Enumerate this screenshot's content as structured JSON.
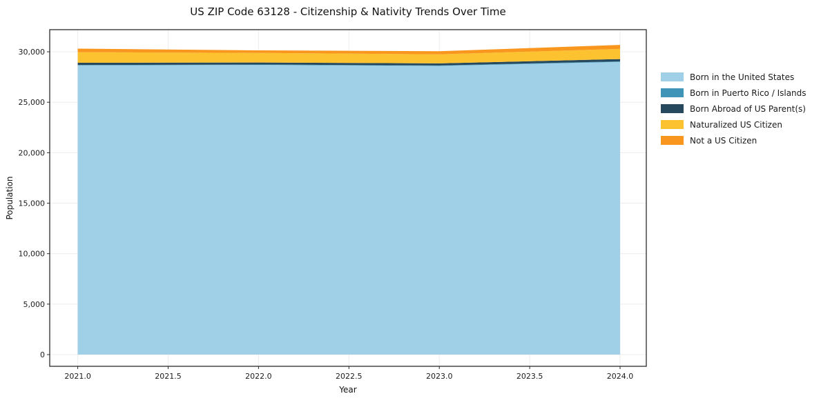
{
  "chart_data": {
    "type": "area",
    "stacked": true,
    "title": "US ZIP Code 63128 - Citizenship & Nativity Trends Over Time",
    "xlabel": "Year",
    "ylabel": "Population",
    "x": [
      2021,
      2022,
      2023,
      2024
    ],
    "series": [
      {
        "name": "Born in the United States",
        "color": "#9fd0e8",
        "values": [
          28650,
          28700,
          28600,
          29000
        ]
      },
      {
        "name": "Born in Puerto Rico / Islands",
        "color": "#3f94b8",
        "values": [
          40,
          40,
          40,
          50
        ]
      },
      {
        "name": "Born Abroad of US Parent(s)",
        "color": "#26495d",
        "values": [
          220,
          200,
          210,
          230
        ]
      },
      {
        "name": "Naturalized US Citizen",
        "color": "#fdc22f",
        "values": [
          1050,
          950,
          900,
          1000
        ]
      },
      {
        "name": "Not a US Citizen",
        "color": "#f8961d",
        "values": [
          350,
          250,
          300,
          400
        ]
      }
    ],
    "xlim": [
      2020.845,
      2024.145
    ],
    "ylim": [
      -1160,
      32190
    ],
    "xticks": {
      "values": [
        2021.0,
        2021.5,
        2022.0,
        2022.5,
        2023.0,
        2023.5,
        2024.0
      ],
      "labels": [
        "2021.0",
        "2021.5",
        "2022.0",
        "2022.5",
        "2023.0",
        "2023.5",
        "2024.0"
      ]
    },
    "yticks": {
      "values": [
        0,
        5000,
        10000,
        15000,
        20000,
        25000,
        30000
      ],
      "labels": [
        "0",
        "5,000",
        "10,000",
        "15,000",
        "20,000",
        "25,000",
        "30,000"
      ]
    },
    "grid": true,
    "legend_position": "right",
    "colors": {
      "plot_border": "#2a2a2a",
      "gridline": "#ececec",
      "background": "#ffffff"
    }
  }
}
